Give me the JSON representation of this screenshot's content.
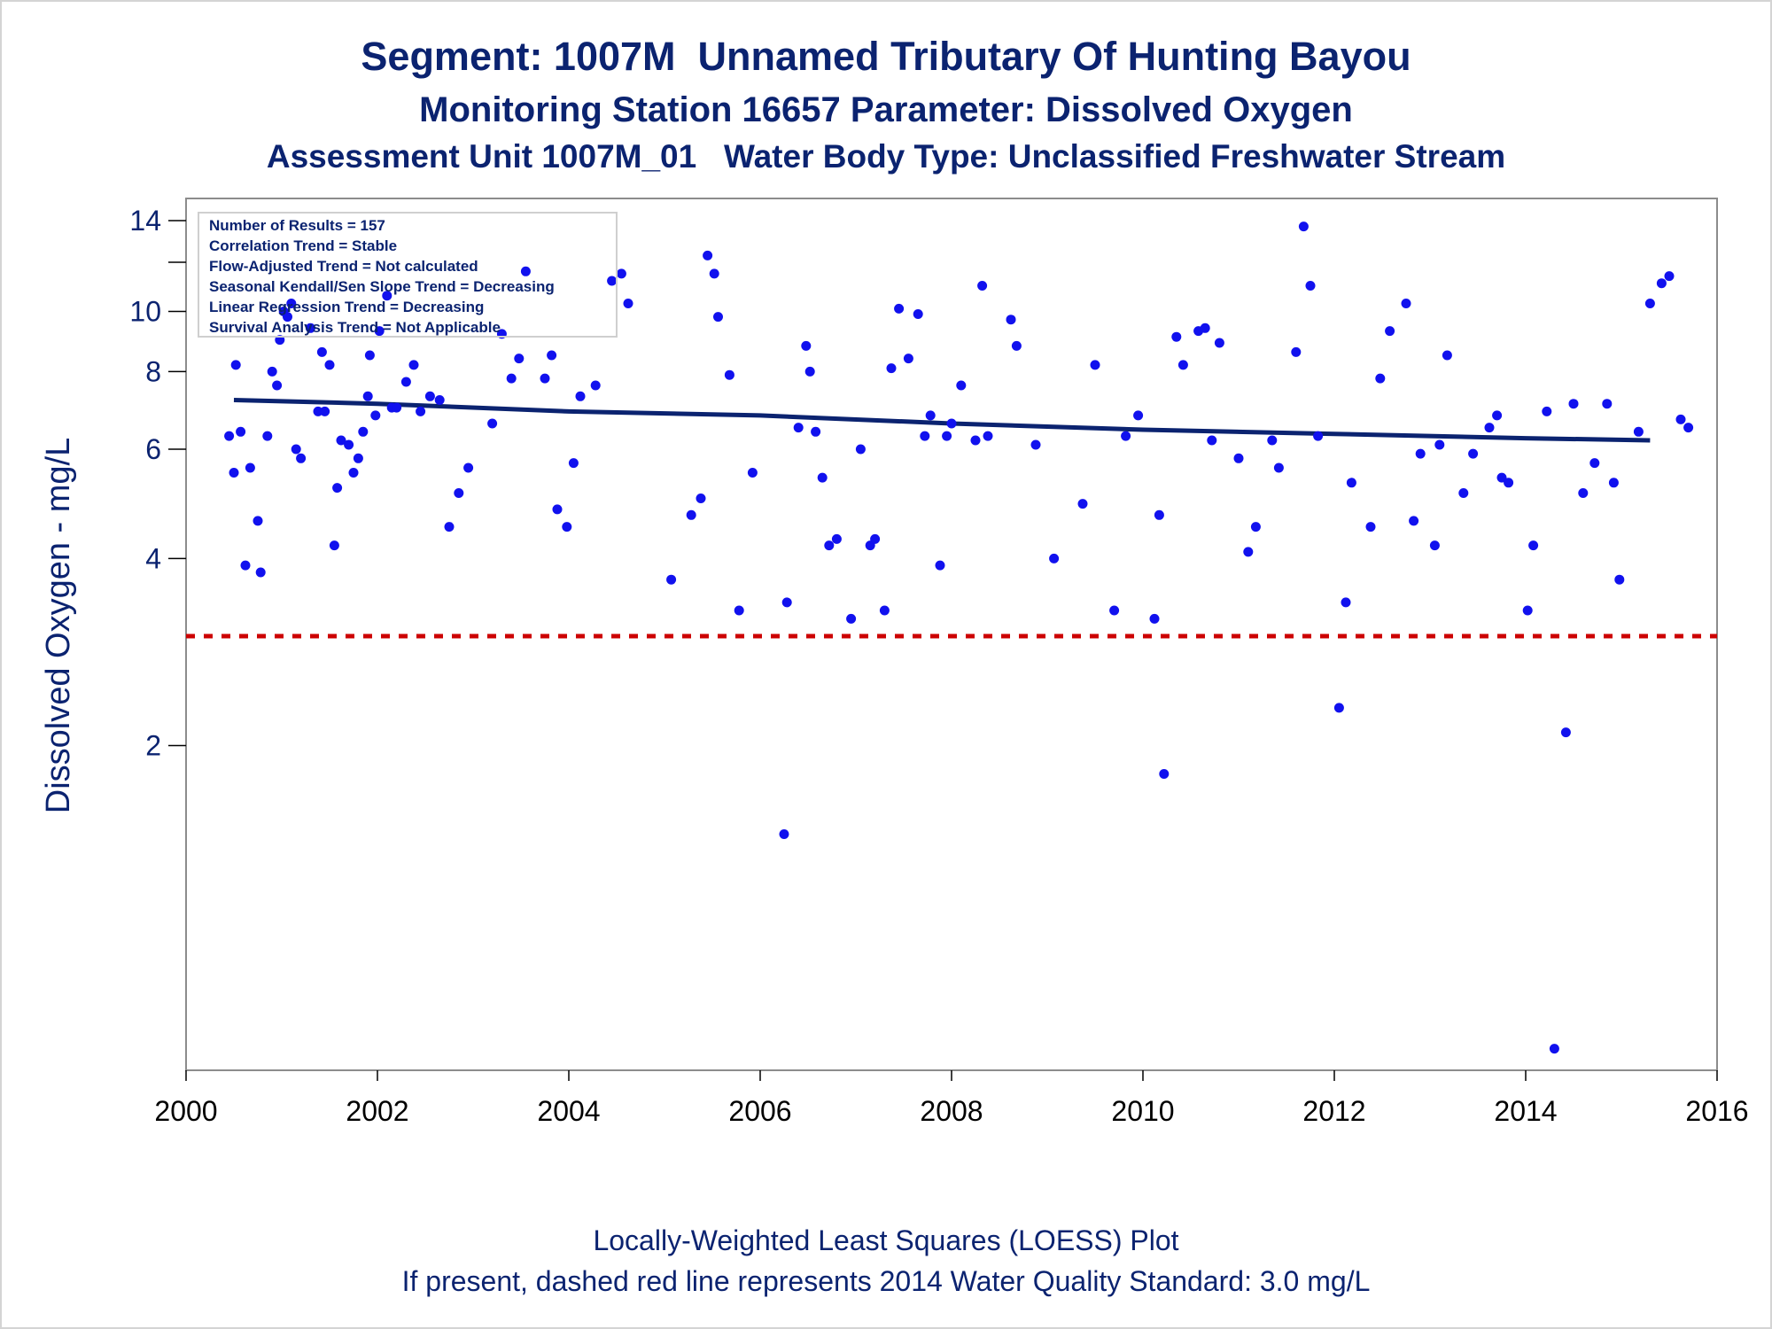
{
  "titles": {
    "line1": "Segment: 1007M  Unnamed Tributary Of Hunting Bayou",
    "line2": "Monitoring Station 16657 Parameter: Dissolved Oxygen",
    "line3": "Assessment Unit 1007M_01   Water Body Type: Unclassified Freshwater Stream"
  },
  "footnotes": {
    "line1": "Locally-Weighted Least Squares (LOESS) Plot",
    "line2": "If present, dashed red line represents 2014 Water Quality Standard: 3.0 mg/L"
  },
  "stats_box": [
    "Number of Results = 157",
    "Correlation Trend = Stable",
    "Flow-Adjusted Trend = Not calculated",
    "Seasonal Kendall/Sen Slope Trend = Decreasing",
    "Linear Regression Trend = Decreasing",
    "Survival Analysis Trend = Not Applicable"
  ],
  "colors": {
    "points": "#1111ee",
    "loess": "#0b2370",
    "standard": "#cc0000",
    "text": "#0b2370"
  },
  "chart_data": {
    "type": "scatter",
    "ylabel": "Dissolved Oxygen - mg/L",
    "xlabel": "",
    "y_scale": "log",
    "xlim": [
      2000,
      2016
    ],
    "ylim": [
      0.6,
      15.2
    ],
    "x_ticks": [
      2000,
      2002,
      2004,
      2006,
      2008,
      2010,
      2012,
      2014,
      2016
    ],
    "y_ticks": [
      2,
      4,
      6,
      8,
      10,
      14
    ],
    "y_minor_ticks": [
      12
    ],
    "legend": "top-left",
    "standard_line": {
      "value": 3.0,
      "style": "dashed"
    },
    "loess": {
      "x": [
        2000.5,
        2002.0,
        2004.0,
        2006.0,
        2008.0,
        2010.0,
        2012.0,
        2014.0,
        2015.3
      ],
      "y": [
        7.2,
        7.1,
        6.9,
        6.8,
        6.6,
        6.45,
        6.35,
        6.25,
        6.2
      ]
    },
    "points": [
      [
        2000.45,
        6.3
      ],
      [
        2000.5,
        5.5
      ],
      [
        2000.52,
        8.2
      ],
      [
        2000.57,
        6.4
      ],
      [
        2000.62,
        3.9
      ],
      [
        2000.67,
        5.6
      ],
      [
        2000.75,
        4.6
      ],
      [
        2000.78,
        3.8
      ],
      [
        2000.85,
        6.3
      ],
      [
        2000.9,
        8.0
      ],
      [
        2000.95,
        7.6
      ],
      [
        2000.98,
        9.0
      ],
      [
        2001.02,
        10.0
      ],
      [
        2001.06,
        9.8
      ],
      [
        2001.1,
        10.3
      ],
      [
        2001.15,
        6.0
      ],
      [
        2001.2,
        5.8
      ],
      [
        2001.3,
        9.4
      ],
      [
        2001.38,
        6.9
      ],
      [
        2001.42,
        8.6
      ],
      [
        2001.45,
        6.9
      ],
      [
        2001.5,
        8.2
      ],
      [
        2001.55,
        4.2
      ],
      [
        2001.58,
        5.2
      ],
      [
        2001.62,
        6.2
      ],
      [
        2001.7,
        6.1
      ],
      [
        2001.75,
        5.5
      ],
      [
        2001.8,
        5.8
      ],
      [
        2001.85,
        6.4
      ],
      [
        2001.9,
        7.3
      ],
      [
        2001.92,
        8.5
      ],
      [
        2001.98,
        6.8
      ],
      [
        2002.02,
        9.3
      ],
      [
        2002.1,
        10.6
      ],
      [
        2002.15,
        7.0
      ],
      [
        2002.2,
        7.0
      ],
      [
        2002.3,
        7.7
      ],
      [
        2002.38,
        8.2
      ],
      [
        2002.45,
        6.9
      ],
      [
        2002.55,
        7.3
      ],
      [
        2002.65,
        7.2
      ],
      [
        2002.75,
        4.5
      ],
      [
        2002.85,
        5.1
      ],
      [
        2002.95,
        5.6
      ],
      [
        2003.2,
        6.6
      ],
      [
        2003.3,
        9.2
      ],
      [
        2003.4,
        7.8
      ],
      [
        2003.48,
        8.4
      ],
      [
        2003.55,
        11.6
      ],
      [
        2003.75,
        7.8
      ],
      [
        2003.82,
        8.5
      ],
      [
        2003.88,
        4.8
      ],
      [
        2003.98,
        4.5
      ],
      [
        2004.05,
        5.7
      ],
      [
        2004.12,
        7.3
      ],
      [
        2004.28,
        7.6
      ],
      [
        2004.45,
        11.2
      ],
      [
        2004.55,
        11.5
      ],
      [
        2004.62,
        10.3
      ],
      [
        2005.07,
        3.7
      ],
      [
        2005.28,
        4.7
      ],
      [
        2005.38,
        5.0
      ],
      [
        2005.45,
        12.3
      ],
      [
        2005.52,
        11.5
      ],
      [
        2005.56,
        9.8
      ],
      [
        2005.68,
        7.9
      ],
      [
        2005.78,
        3.3
      ],
      [
        2005.92,
        5.5
      ],
      [
        2006.25,
        1.44
      ],
      [
        2006.28,
        3.4
      ],
      [
        2006.4,
        6.5
      ],
      [
        2006.48,
        8.8
      ],
      [
        2006.52,
        8.0
      ],
      [
        2006.58,
        6.4
      ],
      [
        2006.65,
        5.4
      ],
      [
        2006.72,
        4.2
      ],
      [
        2006.8,
        4.3
      ],
      [
        2006.95,
        3.2
      ],
      [
        2007.05,
        6.0
      ],
      [
        2007.15,
        4.2
      ],
      [
        2007.2,
        4.3
      ],
      [
        2007.3,
        3.3
      ],
      [
        2007.37,
        8.1
      ],
      [
        2007.45,
        10.1
      ],
      [
        2007.55,
        8.4
      ],
      [
        2007.65,
        9.9
      ],
      [
        2007.72,
        6.3
      ],
      [
        2007.78,
        6.8
      ],
      [
        2007.88,
        3.9
      ],
      [
        2007.95,
        6.3
      ],
      [
        2008.0,
        6.6
      ],
      [
        2008.1,
        7.6
      ],
      [
        2008.25,
        6.2
      ],
      [
        2008.32,
        11.0
      ],
      [
        2008.38,
        6.3
      ],
      [
        2008.62,
        9.7
      ],
      [
        2008.68,
        8.8
      ],
      [
        2008.88,
        6.1
      ],
      [
        2009.07,
        4.0
      ],
      [
        2009.37,
        4.9
      ],
      [
        2009.5,
        8.2
      ],
      [
        2009.7,
        3.3
      ],
      [
        2009.82,
        6.3
      ],
      [
        2009.95,
        6.8
      ],
      [
        2010.12,
        3.2
      ],
      [
        2010.17,
        4.7
      ],
      [
        2010.22,
        1.8
      ],
      [
        2010.35,
        9.1
      ],
      [
        2010.42,
        8.2
      ],
      [
        2010.58,
        9.3
      ],
      [
        2010.65,
        9.4
      ],
      [
        2010.72,
        6.2
      ],
      [
        2010.8,
        8.9
      ],
      [
        2011.0,
        5.8
      ],
      [
        2011.1,
        4.1
      ],
      [
        2011.18,
        4.5
      ],
      [
        2011.35,
        6.2
      ],
      [
        2011.42,
        5.6
      ],
      [
        2011.6,
        8.6
      ],
      [
        2011.68,
        13.7
      ],
      [
        2011.75,
        11.0
      ],
      [
        2011.83,
        6.3
      ],
      [
        2012.05,
        2.3
      ],
      [
        2012.12,
        3.4
      ],
      [
        2012.18,
        5.3
      ],
      [
        2012.38,
        4.5
      ],
      [
        2012.48,
        7.8
      ],
      [
        2012.58,
        9.3
      ],
      [
        2012.75,
        10.3
      ],
      [
        2012.83,
        4.6
      ],
      [
        2012.9,
        5.9
      ],
      [
        2013.05,
        4.2
      ],
      [
        2013.1,
        6.1
      ],
      [
        2013.18,
        8.5
      ],
      [
        2013.35,
        5.1
      ],
      [
        2013.45,
        5.9
      ],
      [
        2013.62,
        6.5
      ],
      [
        2013.7,
        6.8
      ],
      [
        2013.75,
        5.4
      ],
      [
        2013.82,
        5.3
      ],
      [
        2014.02,
        3.3
      ],
      [
        2014.08,
        4.2
      ],
      [
        2014.22,
        6.9
      ],
      [
        2014.3,
        0.65
      ],
      [
        2014.42,
        2.1
      ],
      [
        2014.5,
        7.1
      ],
      [
        2014.6,
        5.1
      ],
      [
        2014.72,
        5.7
      ],
      [
        2014.85,
        7.1
      ],
      [
        2014.92,
        5.3
      ],
      [
        2014.98,
        3.7
      ],
      [
        2015.18,
        6.4
      ],
      [
        2015.3,
        10.3
      ],
      [
        2015.42,
        11.1
      ],
      [
        2015.5,
        11.4
      ],
      [
        2015.62,
        6.7
      ],
      [
        2015.7,
        6.5
      ]
    ]
  }
}
